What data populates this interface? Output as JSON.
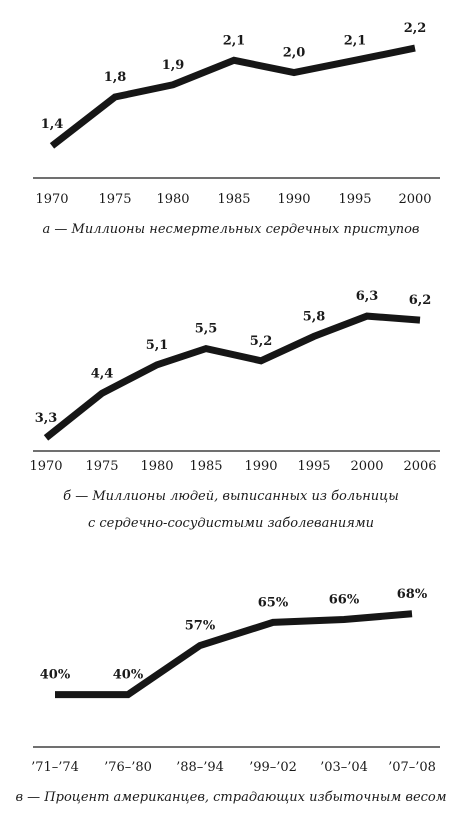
{
  "chart_data": [
    {
      "type": "line",
      "categories": [
        "1970",
        "1975",
        "1980",
        "1985",
        "1990",
        "1995",
        "2000"
      ],
      "values": [
        1.4,
        1.8,
        1.9,
        2.1,
        2.0,
        2.1,
        2.2
      ],
      "value_labels": [
        "1,4",
        "1,8",
        "1,9",
        "2,1",
        "2,0",
        "2,1",
        "2,2"
      ],
      "caption": [
        "а — Миллионы несмертельных сердечных приступов"
      ],
      "ylim": [
        1.35,
        2.25
      ],
      "grid": false
    },
    {
      "type": "line",
      "categories": [
        "1970",
        "1975",
        "1980",
        "1985",
        "1990",
        "1995",
        "2000",
        "2006"
      ],
      "values": [
        3.3,
        4.4,
        5.1,
        5.5,
        5.2,
        5.8,
        6.3,
        6.2
      ],
      "value_labels": [
        "3,3",
        "4,4",
        "5,1",
        "5,5",
        "5,2",
        "5,8",
        "6,3",
        "6,2"
      ],
      "caption": [
        "б — Миллионы людей, выписанных из больницы",
        "с сердечно-сосудистыми заболеваниями"
      ],
      "ylim": [
        3.2,
        6.4
      ],
      "grid": false
    },
    {
      "type": "line",
      "categories": [
        "’71–’74",
        "’76–’80",
        "’88–’94",
        "’99–’02",
        "’03–’04",
        "’07–’08"
      ],
      "values": [
        40,
        40,
        57,
        65,
        66,
        68
      ],
      "value_labels": [
        "40%",
        "40%",
        "57%",
        "65%",
        "66%",
        "68%"
      ],
      "caption": [
        "в — Процент американцев, страдающих избыточным весом"
      ],
      "ylim": [
        35,
        70
      ],
      "grid": false
    }
  ]
}
